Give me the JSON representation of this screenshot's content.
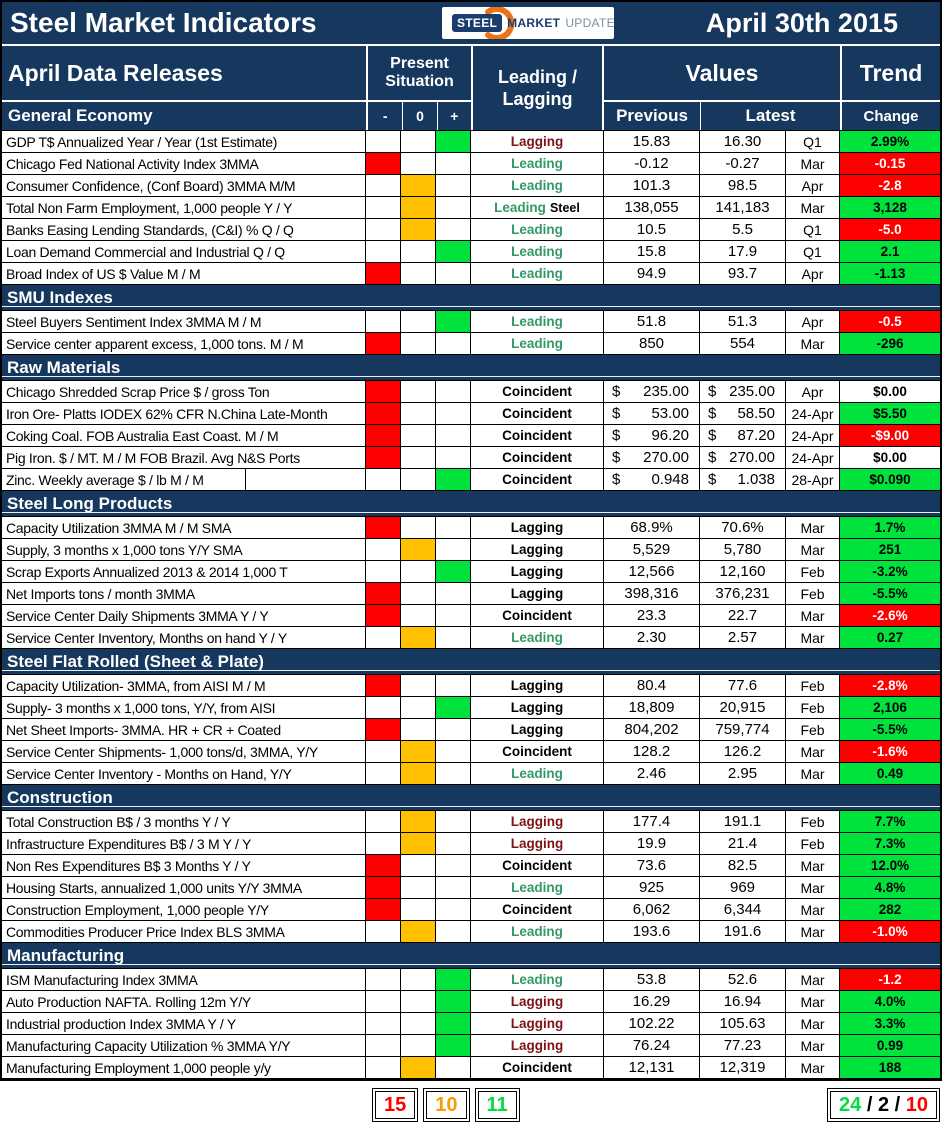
{
  "title_bar": {
    "title": "Steel Market Indicators",
    "date": "April 30th 2015",
    "logo": {
      "word1": "STEEL",
      "word2": "MARKET",
      "word3": "UPDATE"
    }
  },
  "header": {
    "releases_label": "April Data Releases",
    "present_situation_line1": "Present",
    "present_situation_line2": "Situation",
    "leading_lagging_line1": "Leading /",
    "leading_lagging_line2": "Lagging",
    "values": "Values",
    "trend": "Trend",
    "minus": "-",
    "zero": "0",
    "plus": "+",
    "previous": "Previous",
    "latest": "Latest",
    "change": "Change"
  },
  "colors": {
    "navy": "#16375E",
    "cell_red": "#FF0000",
    "cell_orange": "#FFC000",
    "cell_green": "#00E33C",
    "leading_text": "#339966",
    "lagging_maroon_text": "#7E1215"
  },
  "sections": [
    {
      "title": "General Economy",
      "rows": [
        {
          "name": "GDP T$ Annualized Year / Year (1st Estimate)",
          "situation": "plus",
          "indicator": "Lagging",
          "istyle": "lagging-red",
          "prev": "15.83",
          "latest": "16.30",
          "month": "Q1",
          "change": "2.99%",
          "cstyle": "green"
        },
        {
          "name": "Chicago Fed National Activity Index 3MMA",
          "situation": "minus",
          "indicator": "Leading",
          "istyle": "leading",
          "prev": "-0.12",
          "latest": "-0.27",
          "month": "Mar",
          "change": "-0.15",
          "cstyle": "red"
        },
        {
          "name": "Consumer Confidence, (Conf Board) 3MMA M/M",
          "situation": "zero",
          "indicator": "Leading",
          "istyle": "leading",
          "prev": "101.3",
          "latest": "98.5",
          "month": "Apr",
          "change": "-2.8",
          "cstyle": "red"
        },
        {
          "name": "Total Non Farm Employment, 1,000 people Y / Y",
          "situation": "zero",
          "indicator": "Leading",
          "extra": "Steel",
          "istyle": "leading",
          "prev": "138,055",
          "latest": "141,183",
          "month": "Mar",
          "change": "3,128",
          "cstyle": "green"
        },
        {
          "name": "Banks Easing Lending Standards, (C&I) % Q / Q",
          "situation": "zero",
          "indicator": "Leading",
          "istyle": "leading",
          "prev": "10.5",
          "latest": "5.5",
          "month": "Q1",
          "change": "-5.0",
          "cstyle": "red"
        },
        {
          "name": "Loan Demand Commercial and Industrial Q / Q",
          "situation": "plus",
          "indicator": "Leading",
          "istyle": "leading",
          "prev": "15.8",
          "latest": "17.9",
          "month": "Q1",
          "change": "2.1",
          "cstyle": "green"
        },
        {
          "name": "Broad Index of US $ Value M / M",
          "situation": "minus",
          "indicator": "Leading",
          "istyle": "leading",
          "prev": "94.9",
          "latest": "93.7",
          "month": "Apr",
          "change": "-1.13",
          "cstyle": "green"
        }
      ]
    },
    {
      "title": "SMU Indexes",
      "rows": [
        {
          "name": "Steel Buyers Sentiment Index 3MMA M / M",
          "situation": "plus",
          "indicator": "Leading",
          "istyle": "leading",
          "prev": "51.8",
          "latest": "51.3",
          "month": "Apr",
          "change": "-0.5",
          "cstyle": "red"
        },
        {
          "name": "Service center apparent excess, 1,000 tons. M / M",
          "situation": "minus",
          "indicator": "Leading",
          "istyle": "leading",
          "prev": "850",
          "latest": "554",
          "month": "Mar",
          "change": "-296",
          "cstyle": "green"
        }
      ]
    },
    {
      "title": "Raw Materials",
      "rows": [
        {
          "name": "Chicago Shredded Scrap Price $ / gross Ton",
          "situation": "minus",
          "indicator": "Coincident",
          "istyle": "coincident",
          "money": true,
          "prev": "235.00",
          "latest": "235.00",
          "month": "Apr",
          "change": "$0.00",
          "cstyle": "white"
        },
        {
          "name": "Iron Ore- Platts IODEX 62% CFR N.China Late-Month",
          "situation": "minus",
          "indicator": "Coincident",
          "istyle": "coincident",
          "money": true,
          "prev": "53.00",
          "latest": "58.50",
          "month": "24-Apr",
          "change": "$5.50",
          "cstyle": "green"
        },
        {
          "name": "Coking Coal. FOB Australia East Coast. M / M",
          "situation": "minus",
          "indicator": "Coincident",
          "istyle": "coincident",
          "money": true,
          "prev": "96.20",
          "latest": "87.20",
          "month": "24-Apr",
          "change": "-$9.00",
          "cstyle": "red"
        },
        {
          "name": "Pig Iron. $ / MT. M / M FOB Brazil. Avg N&S Ports",
          "situation": "minus",
          "indicator": "Coincident",
          "istyle": "coincident",
          "money": true,
          "prev": "270.00",
          "latest": "270.00",
          "month": "24-Apr",
          "change": "$0.00",
          "cstyle": "white"
        },
        {
          "name": "Zinc. Weekly average $ / lb M / M",
          "situation": "plus",
          "indicator": "Coincident",
          "istyle": "coincident",
          "money": true,
          "prev": "0.948",
          "latest": "1.038",
          "month": "28-Apr",
          "change": "$0.090",
          "cstyle": "green",
          "name_split": true
        }
      ]
    },
    {
      "title": "Steel Long Products",
      "rows": [
        {
          "name": "Capacity Utilization 3MMA  M / M SMA",
          "situation": "minus",
          "indicator": "Lagging",
          "istyle": "lagging",
          "prev": "68.9%",
          "latest": "70.6%",
          "month": "Mar",
          "change": "1.7%",
          "cstyle": "green"
        },
        {
          "name": "Supply, 3 months x 1,000 tons Y/Y SMA",
          "situation": "zero",
          "indicator": "Lagging",
          "istyle": "lagging",
          "prev": "5,529",
          "latest": "5,780",
          "month": "Mar",
          "change": "251",
          "cstyle": "green"
        },
        {
          "name": "Scrap Exports Annualized 2013 & 2014 1,000 T",
          "situation": "plus",
          "indicator": "Lagging",
          "istyle": "lagging",
          "prev": "12,566",
          "latest": "12,160",
          "month": "Feb",
          "change": "-3.2%",
          "cstyle": "green"
        },
        {
          "name": "Net Imports tons / month 3MMA",
          "situation": "minus",
          "indicator": "Lagging",
          "istyle": "lagging",
          "prev": "398,316",
          "latest": "376,231",
          "month": "Feb",
          "change": "-5.5%",
          "cstyle": "green"
        },
        {
          "name": "Service Center Daily Shipments 3MMA Y / Y",
          "situation": "minus",
          "indicator": "Coincident",
          "istyle": "coincident",
          "prev": "23.3",
          "latest": "22.7",
          "month": "Mar",
          "change": "-2.6%",
          "cstyle": "red"
        },
        {
          "name": "Service Center Inventory, Months on hand Y / Y",
          "situation": "zero",
          "indicator": "Leading",
          "istyle": "leading",
          "prev": "2.30",
          "latest": "2.57",
          "month": "Mar",
          "change": "0.27",
          "cstyle": "green"
        }
      ]
    },
    {
      "title": "Steel Flat Rolled (Sheet & Plate)",
      "rows": [
        {
          "name": "Capacity Utilization- 3MMA, from AISI M / M",
          "situation": "minus",
          "indicator": "Lagging",
          "istyle": "lagging",
          "prev": "80.4",
          "latest": "77.6",
          "month": "Feb",
          "change": "-2.8%",
          "cstyle": "red"
        },
        {
          "name": "Supply- 3 months x 1,000 tons, Y/Y, from AISI",
          "situation": "plus",
          "indicator": "Lagging",
          "istyle": "lagging",
          "prev": "18,809",
          "latest": "20,915",
          "month": "Feb",
          "change": "2,106",
          "cstyle": "green"
        },
        {
          "name": "Net Sheet Imports- 3MMA. HR + CR + Coated",
          "situation": "minus",
          "indicator": "Lagging",
          "istyle": "lagging",
          "prev": "804,202",
          "latest": "759,774",
          "month": "Feb",
          "change": "-5.5%",
          "cstyle": "green"
        },
        {
          "name": "Service Center Shipments- 1,000 tons/d, 3MMA, Y/Y",
          "situation": "zero",
          "indicator": "Coincident",
          "istyle": "coincident",
          "prev": "128.2",
          "latest": "126.2",
          "month": "Mar",
          "change": "-1.6%",
          "cstyle": "red"
        },
        {
          "name": "Service Center Inventory - Months on Hand, Y/Y",
          "situation": "zero",
          "indicator": "Leading",
          "istyle": "leading",
          "prev": "2.46",
          "latest": "2.95",
          "month": "Mar",
          "change": "0.49",
          "cstyle": "green"
        }
      ]
    },
    {
      "title": "Construction",
      "rows": [
        {
          "name": "Total Construction B$ /  3 months Y / Y",
          "situation": "zero",
          "indicator": "Lagging",
          "istyle": "lagging-red",
          "prev": "177.4",
          "latest": "191.1",
          "month": "Feb",
          "change": "7.7%",
          "cstyle": "green"
        },
        {
          "name": "Infrastructure Expenditures B$ / 3 M   Y / Y",
          "situation": "zero",
          "indicator": "Lagging",
          "istyle": "lagging-red",
          "prev": "19.9",
          "latest": "21.4",
          "month": "Feb",
          "change": "7.3%",
          "cstyle": "green"
        },
        {
          "name": "Non Res Expenditures B$  3 Months   Y / Y",
          "situation": "minus",
          "indicator": "Coincident",
          "istyle": "coincident",
          "prev": "73.6",
          "latest": "82.5",
          "month": "Mar",
          "change": "12.0%",
          "cstyle": "green"
        },
        {
          "name": "Housing Starts, annualized 1,000 units Y/Y 3MMA",
          "situation": "minus",
          "indicator": "Leading",
          "istyle": "leading",
          "prev": "925",
          "latest": "969",
          "month": "Mar",
          "change": "4.8%",
          "cstyle": "green"
        },
        {
          "name": "Construction Employment, 1,000 people Y/Y",
          "situation": "minus",
          "indicator": "Coincident",
          "istyle": "coincident",
          "prev": "6,062",
          "latest": "6,344",
          "month": "Mar",
          "change": "282",
          "cstyle": "green"
        },
        {
          "name": "Commodities Producer Price Index BLS 3MMA",
          "situation": "zero",
          "indicator": "Leading",
          "istyle": "leading",
          "prev": "193.6",
          "latest": "191.6",
          "month": "Mar",
          "change": "-1.0%",
          "cstyle": "red"
        }
      ]
    },
    {
      "title": "Manufacturing",
      "rows": [
        {
          "name": "ISM Manufacturing Index 3MMA",
          "situation": "plus",
          "indicator": "Leading",
          "istyle": "leading",
          "prev": "53.8",
          "latest": "52.6",
          "month": "Mar",
          "change": "-1.2",
          "cstyle": "red"
        },
        {
          "name": "Auto Production NAFTA. Rolling 12m Y/Y",
          "situation": "plus",
          "indicator": "Lagging",
          "istyle": "lagging-red",
          "prev": "16.29",
          "latest": "16.94",
          "month": "Mar",
          "change": "4.0%",
          "cstyle": "green"
        },
        {
          "name": "Industrial production Index 3MMA Y / Y",
          "situation": "plus",
          "indicator": "Lagging",
          "istyle": "lagging-red",
          "prev": "102.22",
          "latest": "105.63",
          "month": "Mar",
          "change": "3.3%",
          "cstyle": "green"
        },
        {
          "name": "Manufacturing Capacity Utilization % 3MMA Y/Y",
          "situation": "plus",
          "indicator": "Lagging",
          "istyle": "lagging-red",
          "prev": "76.24",
          "latest": "77.23",
          "month": "Mar",
          "change": "0.99",
          "cstyle": "green"
        },
        {
          "name": "Manufacturing Employment 1,000 people y/y",
          "situation": "zero",
          "indicator": "Coincident",
          "istyle": "coincident",
          "prev": "12,131",
          "latest": "12,319",
          "month": "Mar",
          "change": "188",
          "cstyle": "green"
        }
      ]
    }
  ],
  "footer": {
    "situation_counts": [
      {
        "value": "15",
        "color": "#FF0000"
      },
      {
        "value": "10",
        "color": "#FF9900"
      },
      {
        "value": "11",
        "color": "#00DD3C"
      }
    ],
    "trend_summary": [
      {
        "text": "24",
        "color": "#00DD3C"
      },
      {
        "text": " / ",
        "color": "#000000"
      },
      {
        "text": "2",
        "color": "#000000"
      },
      {
        "text": " / ",
        "color": "#000000"
      },
      {
        "text": "10",
        "color": "#FF0000"
      }
    ]
  }
}
